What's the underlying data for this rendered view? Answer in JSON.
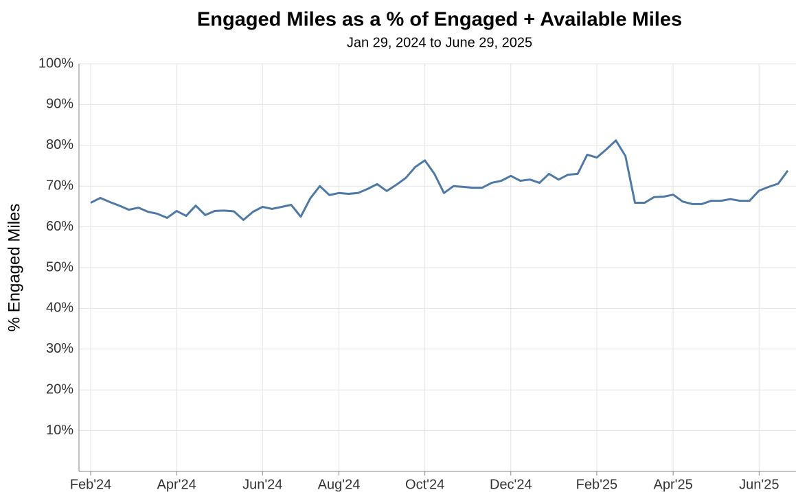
{
  "chart_data": {
    "type": "line",
    "title": "Engaged Miles as a % of Engaged + Available Miles",
    "subtitle": "Jan 29, 2024 to June 29, 2025",
    "y_label": "% Engaged Miles",
    "categories": [
      "Feb'24",
      null,
      null,
      null,
      null,
      null,
      null,
      null,
      null,
      "Apr'24",
      null,
      null,
      null,
      null,
      null,
      null,
      null,
      null,
      "Jun'24",
      null,
      null,
      null,
      null,
      null,
      null,
      null,
      "Aug'24",
      null,
      null,
      null,
      null,
      null,
      null,
      null,
      null,
      "Oct'24",
      null,
      null,
      null,
      null,
      null,
      null,
      null,
      null,
      "Dec'24",
      null,
      null,
      null,
      null,
      null,
      null,
      null,
      null,
      "Feb'25",
      null,
      null,
      null,
      null,
      null,
      null,
      null,
      "Apr'25",
      null,
      null,
      null,
      null,
      null,
      null,
      null,
      null,
      "Jun'25",
      null,
      null,
      null
    ],
    "series": [
      {
        "name": "% Engaged Miles",
        "color": "#4e79a7",
        "values": [
          65.9,
          67.1,
          66.1,
          65.2,
          64.2,
          64.7,
          63.7,
          63.2,
          62.2,
          63.9,
          62.7,
          65.2,
          62.9,
          63.9,
          64.0,
          63.8,
          61.7,
          63.7,
          64.9,
          64.4,
          64.9,
          65.4,
          62.5,
          67.0,
          70.0,
          67.8,
          68.3,
          68.1,
          68.3,
          69.3,
          70.5,
          68.8,
          70.3,
          72.0,
          74.7,
          76.3,
          73.0,
          68.3,
          70.0,
          69.8,
          69.6,
          69.6,
          70.8,
          71.3,
          72.5,
          71.3,
          71.6,
          70.8,
          73.0,
          71.6,
          72.8,
          73.0,
          77.7,
          77.0,
          79.0,
          81.2,
          77.4,
          65.9,
          65.9,
          67.3,
          67.4,
          67.9,
          66.2,
          65.6,
          65.6,
          66.4,
          66.4,
          66.8,
          66.4,
          66.4,
          68.9,
          69.8,
          70.6,
          73.8
        ]
      }
    ],
    "ylim": [
      0,
      100
    ],
    "yticks": [
      {
        "value": 10,
        "label": "10%"
      },
      {
        "value": 20,
        "label": "20%"
      },
      {
        "value": 30,
        "label": "30%"
      },
      {
        "value": 40,
        "label": "40%"
      },
      {
        "value": 50,
        "label": "50%"
      },
      {
        "value": 60,
        "label": "60%"
      },
      {
        "value": 70,
        "label": "70%"
      },
      {
        "value": 80,
        "label": "80%"
      },
      {
        "value": 90,
        "label": "90%"
      },
      {
        "value": 100,
        "label": "100%"
      }
    ],
    "grid": true
  }
}
